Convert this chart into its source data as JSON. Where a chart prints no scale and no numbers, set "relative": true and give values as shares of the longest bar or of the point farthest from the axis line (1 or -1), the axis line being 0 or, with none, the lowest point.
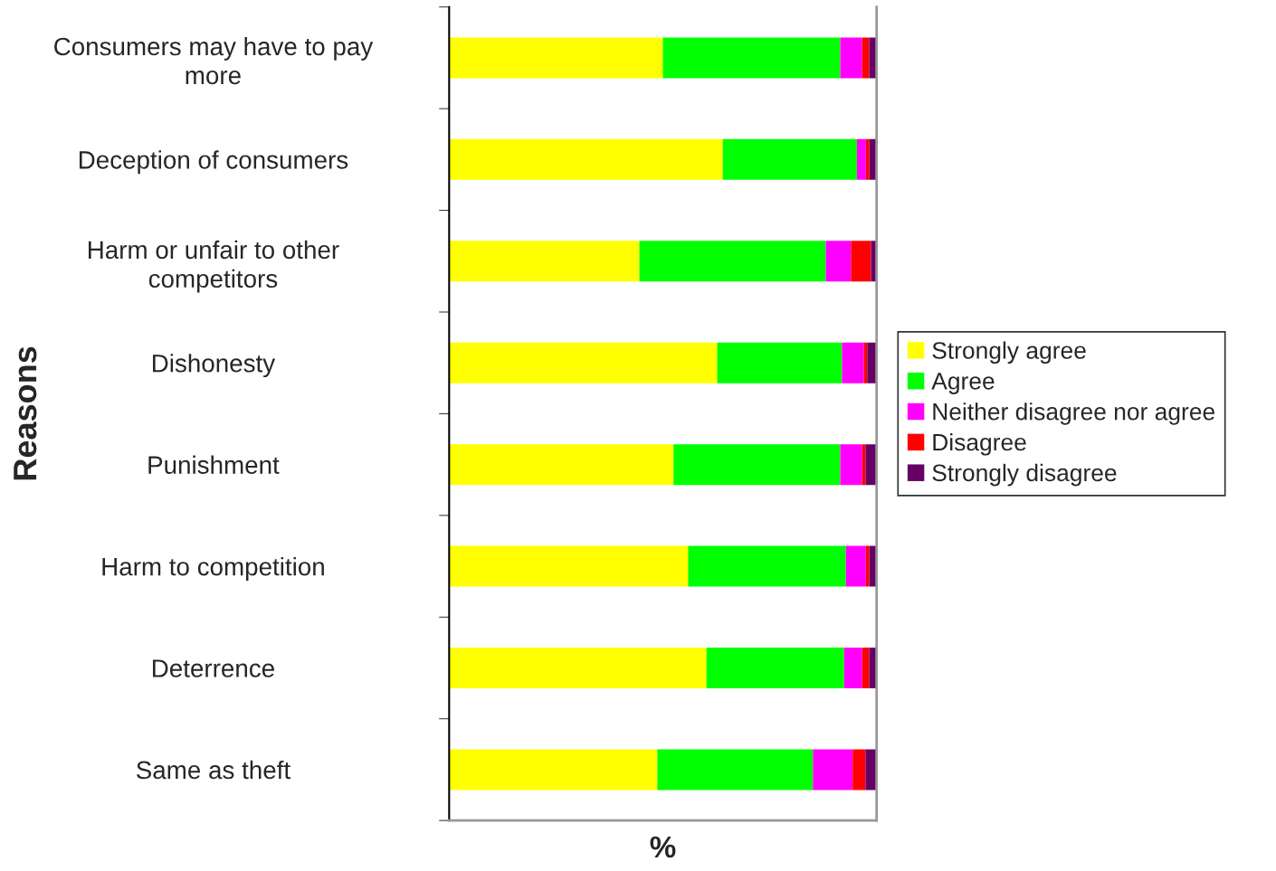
{
  "chart_data": {
    "type": "bar",
    "orientation": "horizontal",
    "stacked": true,
    "relative": true,
    "xlabel": "%",
    "ylabel": "Reasons",
    "categories": [
      "Consumers may have to pay\nmore",
      "Deception of consumers",
      "Harm or unfair to other\ncompetitors",
      "Dishonesty",
      "Punishment",
      "Harm to competition",
      "Deterrence",
      "Same as theft"
    ],
    "series": [
      {
        "name": "Strongly agree",
        "color": "#ffff00",
        "values": [
          0.5,
          0.64,
          0.445,
          0.627,
          0.525,
          0.559,
          0.602,
          0.487
        ]
      },
      {
        "name": "Agree",
        "color": "#00ff00",
        "values": [
          0.415,
          0.314,
          0.436,
          0.292,
          0.39,
          0.369,
          0.322,
          0.364
        ]
      },
      {
        "name": "Neither disagree nor agree",
        "color": "#ff00ff",
        "values": [
          0.051,
          0.021,
          0.059,
          0.051,
          0.051,
          0.047,
          0.042,
          0.093
        ]
      },
      {
        "name": "Disagree",
        "color": "#ff0000",
        "values": [
          0.017,
          0.008,
          0.047,
          0.008,
          0.008,
          0.008,
          0.017,
          0.03
        ]
      },
      {
        "name": "Strongly disagree",
        "color": "#660066",
        "values": [
          0.017,
          0.017,
          0.013,
          0.021,
          0.025,
          0.017,
          0.017,
          0.025
        ]
      }
    ],
    "legend": "right",
    "grid": false
  }
}
